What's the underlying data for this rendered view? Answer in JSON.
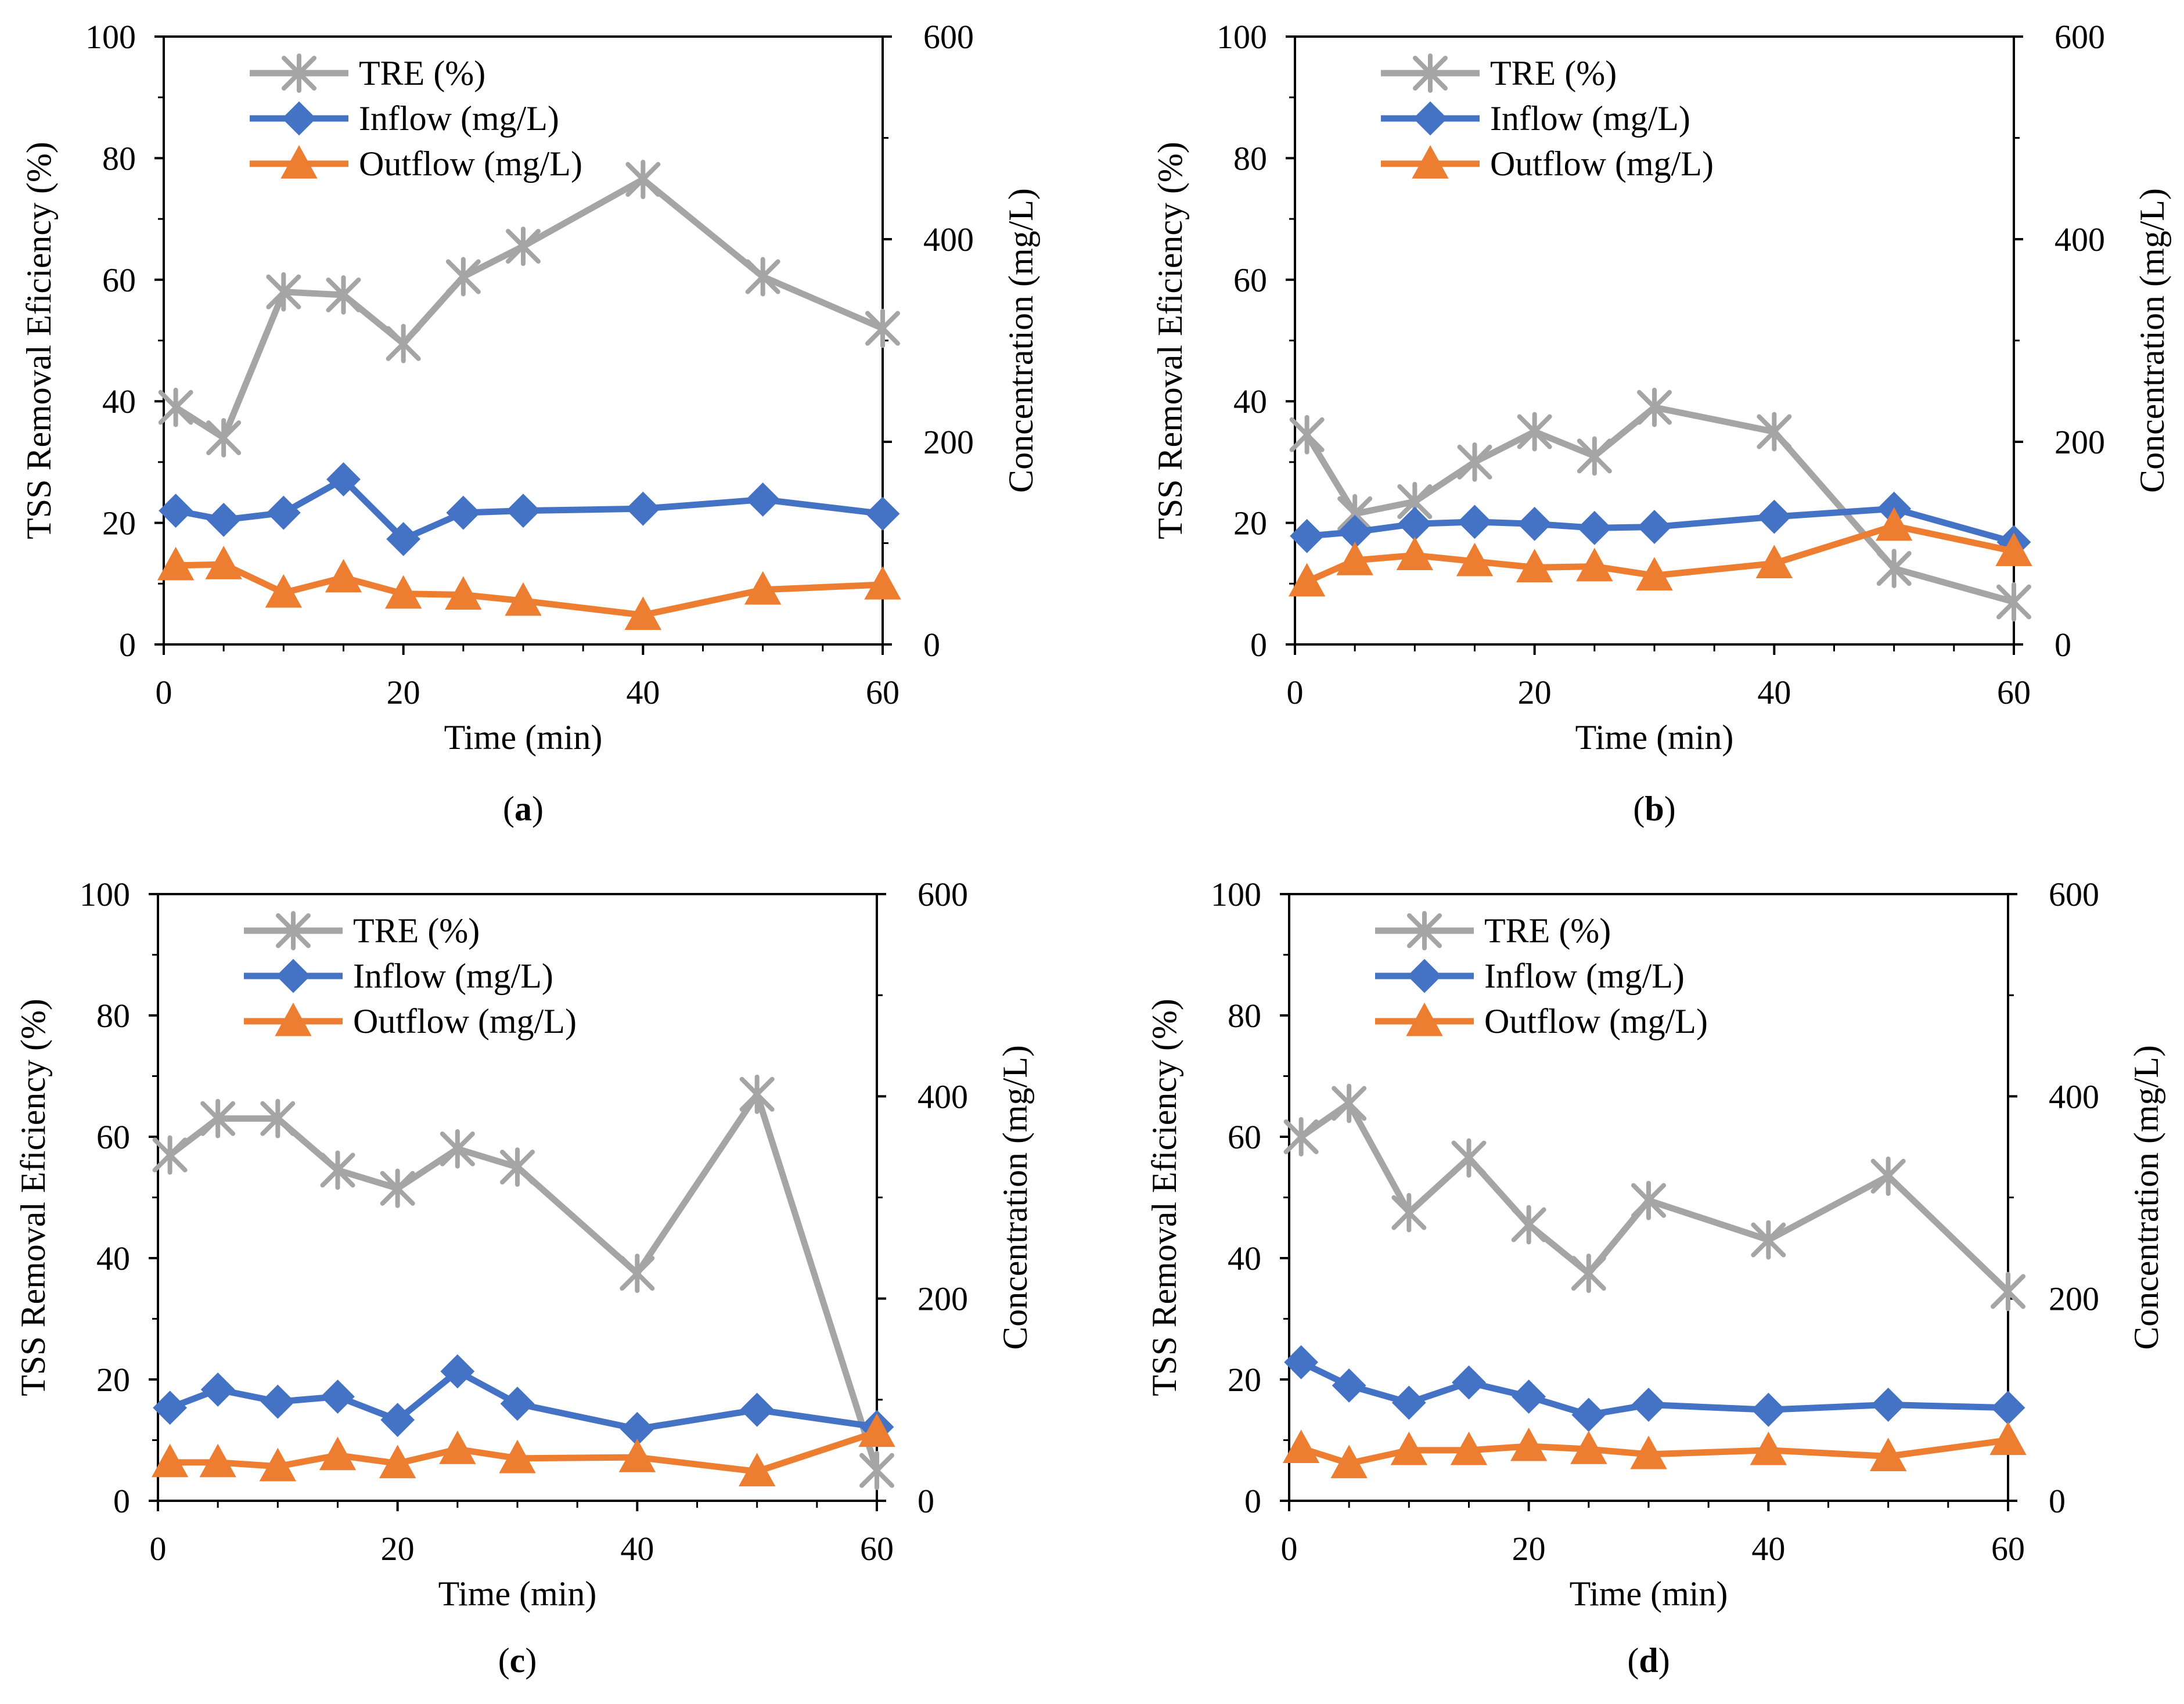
{
  "legend": {
    "tre": "TRE (%)",
    "inflow": "Inflow (mg/L)",
    "outflow": "Outflow (mg/L)"
  },
  "colors": {
    "tre": "#A5A5A5",
    "inflow": "#4472C4",
    "outflow": "#ED7D31"
  },
  "chart_data": [
    {
      "id": "a",
      "type": "line",
      "caption_letter": "a",
      "xlabel": "Time (min)",
      "ylabel_left": "TSS Removal Eficiency (%)",
      "ylabel_right": "Concentration (mg/L)",
      "xlim": [
        0,
        60
      ],
      "ylim_left": [
        0,
        100
      ],
      "ylim_right": [
        0,
        600
      ],
      "xticks": [
        0,
        20,
        40,
        60
      ],
      "yticks_left": [
        0,
        20,
        40,
        60,
        80,
        100
      ],
      "yticks_right": [
        0,
        200,
        400,
        600
      ],
      "x": [
        1,
        5,
        10,
        15,
        20,
        25,
        30,
        40,
        50,
        60
      ],
      "series": [
        {
          "key": "tre",
          "name": "TRE (%)",
          "axis": "left",
          "marker": "star",
          "values": [
            39,
            34,
            58,
            57.5,
            49.5,
            60.5,
            65.5,
            76.5,
            60.5,
            52
          ]
        },
        {
          "key": "inflow",
          "name": "Inflow (mg/L)",
          "axis": "right",
          "marker": "diamond",
          "values": [
            132,
            123,
            130,
            163,
            104,
            130,
            132,
            134,
            143,
            129
          ]
        },
        {
          "key": "outflow",
          "name": "Outflow (mg/L)",
          "axis": "right",
          "marker": "triangle",
          "values": [
            78,
            79,
            51,
            66,
            50,
            49,
            43,
            29,
            54,
            59
          ]
        }
      ]
    },
    {
      "id": "b",
      "type": "line",
      "caption_letter": "b",
      "xlabel": "Time (min)",
      "ylabel_left": "TSS Removal Eficiency (%)",
      "ylabel_right": "Concentration (mg/L)",
      "xlim": [
        0,
        60
      ],
      "ylim_left": [
        0,
        100
      ],
      "ylim_right": [
        0,
        600
      ],
      "xticks": [
        0,
        20,
        40,
        60
      ],
      "yticks_left": [
        0,
        20,
        40,
        60,
        80,
        100
      ],
      "yticks_right": [
        0,
        200,
        400,
        600
      ],
      "x": [
        1,
        5,
        10,
        15,
        20,
        25,
        30,
        40,
        50,
        60
      ],
      "series": [
        {
          "key": "tre",
          "name": "TRE (%)",
          "axis": "left",
          "marker": "star",
          "values": [
            34.5,
            21.5,
            23.5,
            30,
            35,
            31,
            39,
            35,
            12.5,
            7
          ]
        },
        {
          "key": "inflow",
          "name": "Inflow (mg/L)",
          "axis": "right",
          "marker": "diamond",
          "values": [
            107,
            111,
            119,
            121,
            119,
            115,
            116,
            126,
            134,
            101
          ]
        },
        {
          "key": "outflow",
          "name": "Outflow (mg/L)",
          "axis": "right",
          "marker": "triangle",
          "values": [
            62,
            83,
            88,
            82,
            76,
            77,
            68,
            80,
            117,
            92
          ]
        }
      ]
    },
    {
      "id": "c",
      "type": "line",
      "caption_letter": "c",
      "xlabel": "Time (min)",
      "ylabel_left": "TSS Removal Eficiency (%)",
      "ylabel_right": "Concentration (mg/L)",
      "xlim": [
        0,
        60
      ],
      "ylim_left": [
        0,
        100
      ],
      "ylim_right": [
        0,
        600
      ],
      "xticks": [
        0,
        20,
        40,
        60
      ],
      "yticks_left": [
        0,
        20,
        40,
        60,
        80,
        100
      ],
      "yticks_right": [
        0,
        200,
        400,
        600
      ],
      "x": [
        1,
        5,
        10,
        15,
        20,
        25,
        30,
        40,
        50,
        60
      ],
      "series": [
        {
          "key": "tre",
          "name": "TRE (%)",
          "axis": "left",
          "marker": "star",
          "values": [
            57,
            63,
            63,
            54.5,
            51.5,
            58,
            55,
            37.5,
            67,
            5
          ]
        },
        {
          "key": "inflow",
          "name": "Inflow (mg/L)",
          "axis": "right",
          "marker": "diamond",
          "values": [
            92,
            110,
            98,
            103,
            80,
            128,
            96,
            71,
            90,
            73
          ]
        },
        {
          "key": "outflow",
          "name": "Outflow (mg/L)",
          "axis": "right",
          "marker": "triangle",
          "values": [
            38,
            38,
            34,
            45,
            37,
            51,
            42,
            43,
            29,
            68
          ]
        }
      ]
    },
    {
      "id": "d",
      "type": "line",
      "caption_letter": "d",
      "xlabel": "Time (min)",
      "ylabel_left": "TSS Removal Eficiency (%)",
      "ylabel_right": "Concentration (mg/L)",
      "xlim": [
        0,
        60
      ],
      "ylim_left": [
        0,
        100
      ],
      "ylim_right": [
        0,
        600
      ],
      "xticks": [
        0,
        20,
        40,
        60
      ],
      "yticks_left": [
        0,
        20,
        40,
        60,
        80,
        100
      ],
      "yticks_right": [
        0,
        200,
        400,
        600
      ],
      "x": [
        1,
        5,
        10,
        15,
        20,
        25,
        30,
        40,
        50,
        60
      ],
      "series": [
        {
          "key": "tre",
          "name": "TRE (%)",
          "axis": "left",
          "marker": "star",
          "values": [
            60,
            65.5,
            47.5,
            56.5,
            45.5,
            37.5,
            49.5,
            43,
            53.5,
            34.5
          ]
        },
        {
          "key": "inflow",
          "name": "Inflow (mg/L)",
          "axis": "right",
          "marker": "diamond",
          "values": [
            137,
            114,
            97,
            117,
            103,
            85,
            95,
            90,
            95,
            92
          ]
        },
        {
          "key": "outflow",
          "name": "Outflow (mg/L)",
          "axis": "right",
          "marker": "triangle",
          "values": [
            52,
            37,
            50,
            50,
            54,
            51,
            46,
            50,
            44,
            60
          ]
        }
      ]
    }
  ]
}
